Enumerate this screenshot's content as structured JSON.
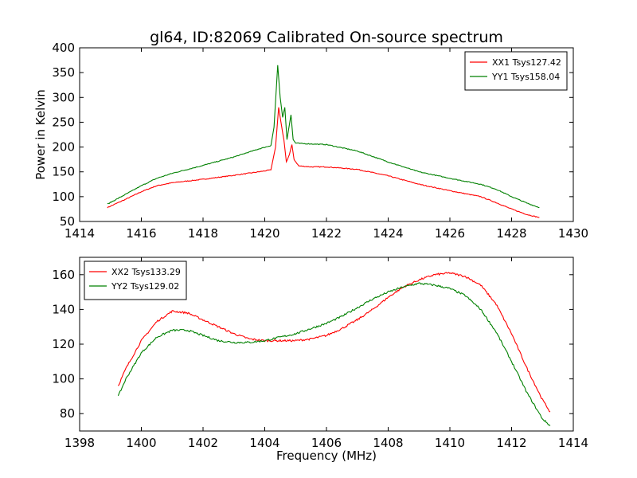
{
  "figure": {
    "title": "gl64, ID:82069 Calibrated On-source spectrum"
  },
  "chart_data": [
    {
      "type": "line",
      "title": "gl64, ID:82069 Calibrated On-source spectrum",
      "xlabel": "",
      "ylabel": "Power in Kelvin",
      "xlim": [
        1414,
        1430
      ],
      "ylim": [
        50,
        400
      ],
      "xticks": [
        1414,
        1416,
        1418,
        1420,
        1422,
        1424,
        1426,
        1428,
        1430
      ],
      "yticks": [
        50,
        100,
        150,
        200,
        250,
        300,
        350,
        400
      ],
      "legend": "top-right",
      "grid": false,
      "series": [
        {
          "name": "XX1 Tsys127.42",
          "color": "#ff0000",
          "x": [
            1414.9,
            1415.5,
            1416.0,
            1416.5,
            1417.0,
            1418.0,
            1419.0,
            1419.8,
            1420.2,
            1420.35,
            1420.45,
            1420.55,
            1420.62,
            1420.7,
            1420.8,
            1420.88,
            1420.95,
            1421.1,
            1421.5,
            1422.0,
            1423.0,
            1424.0,
            1425.0,
            1426.0,
            1427.0,
            1427.5,
            1428.0,
            1428.5,
            1428.9
          ],
          "y": [
            78,
            95,
            110,
            122,
            128,
            135,
            143,
            150,
            154,
            200,
            280,
            240,
            215,
            170,
            185,
            205,
            175,
            162,
            160,
            160,
            155,
            142,
            125,
            112,
            100,
            88,
            75,
            64,
            58
          ]
        },
        {
          "name": "YY1 Tsys158.04",
          "color": "#008000",
          "x": [
            1414.9,
            1415.5,
            1416.0,
            1416.5,
            1417.0,
            1418.0,
            1419.0,
            1419.8,
            1420.2,
            1420.3,
            1420.42,
            1420.5,
            1420.58,
            1420.65,
            1420.72,
            1420.85,
            1420.92,
            1421.0,
            1421.2,
            1422.0,
            1423.0,
            1424.0,
            1425.0,
            1426.0,
            1427.0,
            1427.5,
            1428.0,
            1428.5,
            1428.9
          ],
          "y": [
            85,
            105,
            122,
            137,
            147,
            163,
            180,
            196,
            203,
            240,
            365,
            300,
            260,
            280,
            215,
            265,
            215,
            208,
            207,
            205,
            192,
            170,
            150,
            137,
            125,
            115,
            100,
            87,
            78
          ]
        }
      ]
    },
    {
      "type": "line",
      "title": "",
      "xlabel": "Frequency (MHz)",
      "ylabel": "",
      "xlim": [
        1398,
        1414
      ],
      "ylim": [
        70,
        170
      ],
      "xticks": [
        1398,
        1400,
        1402,
        1404,
        1406,
        1408,
        1410,
        1412,
        1414
      ],
      "yticks": [
        80,
        100,
        120,
        140,
        160
      ],
      "legend": "top-left",
      "grid": false,
      "series": [
        {
          "name": "XX2 Tsys133.29",
          "color": "#ff0000",
          "x": [
            1399.25,
            1399.5,
            1400.0,
            1400.5,
            1401.0,
            1401.5,
            1402.0,
            1402.5,
            1403.0,
            1403.5,
            1404.0,
            1404.5,
            1405.0,
            1405.5,
            1406.0,
            1406.5,
            1407.0,
            1407.5,
            1408.0,
            1408.5,
            1409.0,
            1409.5,
            1410.0,
            1410.5,
            1411.0,
            1411.5,
            1412.0,
            1412.5,
            1413.0,
            1413.25
          ],
          "y": [
            96,
            106,
            122,
            133,
            139,
            138,
            134,
            130,
            126,
            123,
            122,
            122,
            122,
            123,
            125,
            129,
            134,
            140,
            147,
            153,
            157,
            160,
            161,
            159,
            154,
            143,
            126,
            106,
            88,
            81
          ]
        },
        {
          "name": "YY2 Tsys129.02",
          "color": "#008000",
          "x": [
            1399.25,
            1399.5,
            1400.0,
            1400.5,
            1401.0,
            1401.5,
            1402.0,
            1402.5,
            1403.0,
            1403.5,
            1404.0,
            1404.5,
            1405.0,
            1405.5,
            1406.0,
            1406.5,
            1407.0,
            1407.5,
            1408.0,
            1408.5,
            1409.0,
            1409.5,
            1410.0,
            1410.5,
            1411.0,
            1411.5,
            1412.0,
            1412.5,
            1413.0,
            1413.25
          ],
          "y": [
            90,
            100,
            115,
            124,
            128,
            128,
            125,
            122,
            121,
            121,
            122,
            124,
            126,
            129,
            132,
            136,
            141,
            146,
            150,
            153,
            155,
            154,
            152,
            148,
            140,
            127,
            110,
            92,
            77,
            73
          ]
        }
      ]
    }
  ]
}
